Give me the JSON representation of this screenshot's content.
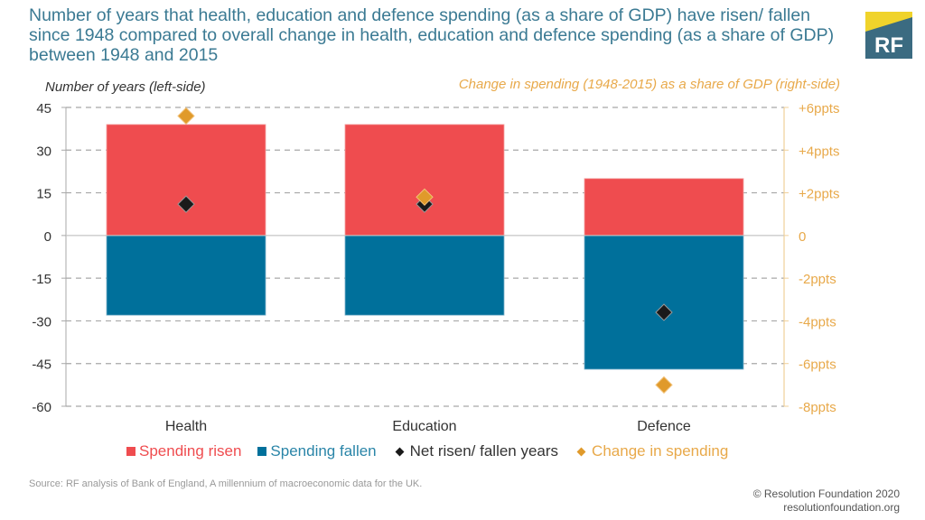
{
  "header": {
    "title": "Number of years that health, education and defence spending (as a share of GDP) have risen/ fallen since 1948 compared to overall change in health, education and defence spending (as a share of GDP) between 1948 and 2015",
    "logo_text": "RF"
  },
  "colors": {
    "title": "#3b7a93",
    "risen": "#ef4c4f",
    "fallen": "#00709b",
    "net": "#1a1a1a",
    "change": "#e09a2b",
    "right_axis": "#e8a94a",
    "logo_bg": "#3b6b81",
    "logo_accent": "#f0d32b"
  },
  "chart_data": {
    "type": "bar",
    "title": "Number of years that health, education and defence spending (as a share of GDP) have risen/ fallen since 1948 compared to overall change in health, education and defence spending (as a share of GDP) between 1948 and 2015",
    "categories": [
      "Health",
      "Education",
      "Defence"
    ],
    "ylabel": "Number of years (left-side)",
    "y2label": "Change in spending (1948-2015) as a share of GDP (right-side)",
    "ylim": [
      -60,
      45
    ],
    "yticks": [
      45,
      30,
      15,
      0,
      -15,
      -30,
      -45,
      -60
    ],
    "ytick_labels": [
      "45",
      "30",
      "15",
      "0",
      "-15",
      "-30",
      "-45",
      "-60"
    ],
    "y2lim": [
      -8,
      6
    ],
    "y2ticks": [
      6,
      4,
      2,
      0,
      -2,
      -4,
      -6,
      -8
    ],
    "y2tick_labels": [
      "+6ppts",
      "+4ppts",
      "+2ppts",
      "0",
      "-2ppts",
      "-4ppts",
      "-6ppts",
      "-8ppts"
    ],
    "grid": true,
    "legend_position": "bottom",
    "series": [
      {
        "name": "Spending risen",
        "kind": "bar",
        "axis": "left",
        "values": [
          39,
          39,
          20
        ]
      },
      {
        "name": "Spending fallen",
        "kind": "bar",
        "axis": "left",
        "values": [
          -28,
          -28,
          -47
        ]
      },
      {
        "name": "Net risen/ fallen years",
        "kind": "marker",
        "axis": "left",
        "values": [
          11,
          11,
          -27
        ]
      },
      {
        "name": "Change in spending",
        "kind": "marker",
        "axis": "right",
        "values": [
          5.6,
          1.8,
          -7.0
        ]
      }
    ]
  },
  "legend": [
    {
      "label": "Spending risen",
      "shape": "square",
      "color": "#ef4c4f",
      "text_color": "#ef4c4f"
    },
    {
      "label": "Spending fallen",
      "shape": "square",
      "color": "#00709b",
      "text_color": "#2a85a8"
    },
    {
      "label": "Net risen/ fallen years",
      "shape": "diamond",
      "color": "#1a1a1a",
      "text_color": "#333333"
    },
    {
      "label": "Change in spending",
      "shape": "diamond",
      "color": "#e09a2b",
      "text_color": "#e8a94a"
    }
  ],
  "footer": {
    "source": "Source: RF analysis of Bank of England, A millennium of macroeconomic data for the UK.",
    "copyright": "© Resolution Foundation 2020",
    "website": "resolutionfoundation.org"
  }
}
